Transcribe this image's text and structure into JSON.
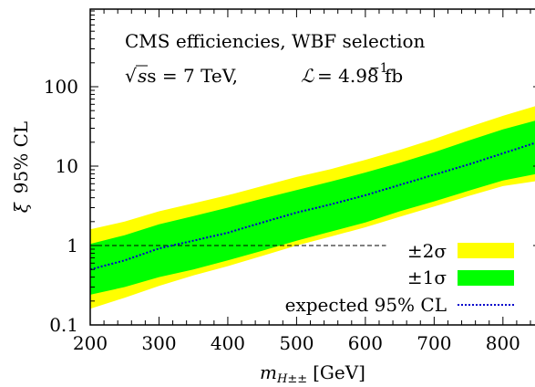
{
  "chart_data": {
    "type": "area",
    "xlabel_main": "m",
    "xlabel_sub": "H±±",
    "xlabel_unit": "[GeV]",
    "ylabel_sym": "ξ",
    "ylabel_text": "95% CL",
    "yscale": "log",
    "xlim": [
      200,
      850
    ],
    "ylim": [
      0.1,
      1000
    ],
    "x_ticks": [
      "200",
      "300",
      "400",
      "500",
      "600",
      "700",
      "800"
    ],
    "x_tick_values": [
      200,
      300,
      400,
      500,
      600,
      700,
      800
    ],
    "y_ticks": [
      "0.1",
      "1",
      "10",
      "100"
    ],
    "y_tick_values": [
      0.1,
      1,
      10,
      100
    ],
    "annotations": {
      "line1": "CMS efficiencies, WBF selection",
      "sqrt": "√",
      "s_eq": "s = 7 TeV,",
      "lumi_sym": "ℒ",
      "lumi_val": "= 4.98 fb",
      "lumi_exp": "−1"
    },
    "x": [
      200,
      250,
      300,
      350,
      400,
      450,
      500,
      550,
      600,
      650,
      700,
      750,
      800,
      850
    ],
    "series": [
      {
        "name": "±2σ",
        "color": "#ffff00",
        "lower": [
          0.16,
          0.22,
          0.31,
          0.42,
          0.55,
          0.74,
          1.0,
          1.3,
          1.7,
          2.3,
          3.1,
          4.2,
          5.6,
          6.5
        ],
        "upper": [
          1.6,
          2.0,
          2.7,
          3.4,
          4.3,
          5.6,
          7.3,
          9.2,
          12.0,
          16.0,
          22.0,
          31.0,
          43.0,
          58.0
        ]
      },
      {
        "name": "±1σ",
        "color": "#00ff00",
        "lower": [
          0.24,
          0.3,
          0.4,
          0.5,
          0.65,
          0.86,
          1.15,
          1.5,
          1.95,
          2.7,
          3.6,
          4.9,
          6.6,
          8.0
        ],
        "upper": [
          1.05,
          1.35,
          1.85,
          2.35,
          3.0,
          3.9,
          5.0,
          6.4,
          8.3,
          11.0,
          15.0,
          21.0,
          29.0,
          38.0
        ]
      },
      {
        "name": "expected 95% CL",
        "color": "#0000cc",
        "values": [
          0.5,
          0.65,
          0.92,
          1.15,
          1.45,
          1.95,
          2.6,
          3.3,
          4.3,
          5.8,
          7.8,
          10.5,
          14.5,
          20.0
        ]
      }
    ],
    "reference_line": {
      "y": 1,
      "x_start": 200,
      "x_end": 630
    },
    "legend_placement": "bottom-right"
  }
}
